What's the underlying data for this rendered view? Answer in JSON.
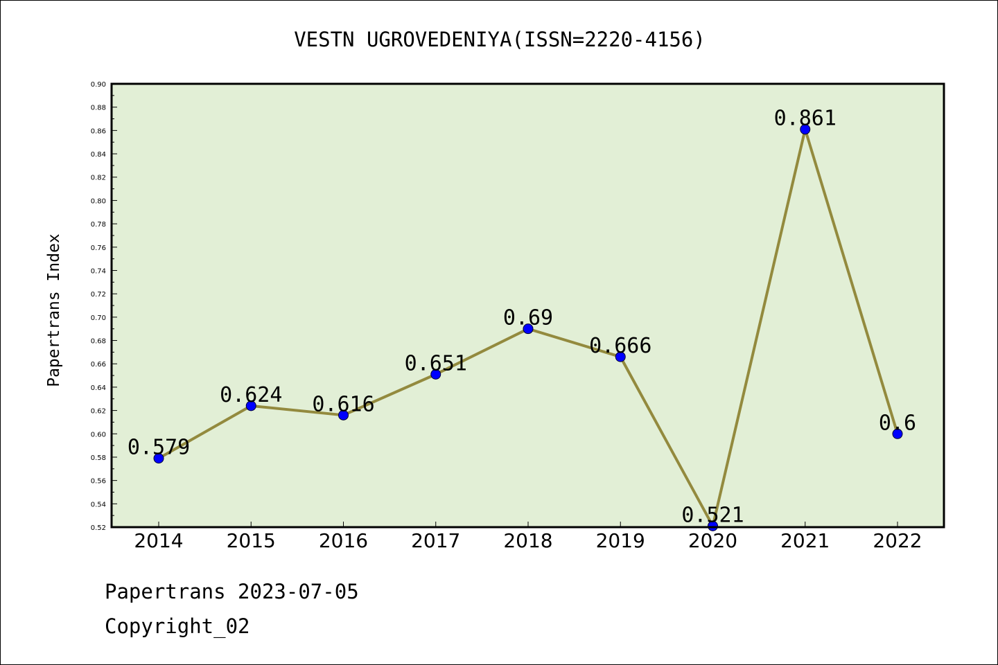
{
  "chart_data": {
    "type": "line",
    "title": "VESTN UGROVEDENIYA(ISSN=2220-4156)",
    "xlabel": "",
    "ylabel": "Papertrans Index",
    "categories": [
      "2014",
      "2015",
      "2016",
      "2017",
      "2018",
      "2019",
      "2020",
      "2021",
      "2022"
    ],
    "values": [
      0.579,
      0.624,
      0.616,
      0.651,
      0.69,
      0.666,
      0.521,
      0.861,
      0.6
    ],
    "data_labels": [
      "0.579",
      "0.624",
      "0.616",
      "0.651",
      "0.69",
      "0.666",
      "0.521",
      "0.861",
      "0.6"
    ],
    "ylim": [
      0.52,
      0.9
    ],
    "y_ticks": [
      "0.52",
      "0.54",
      "0.56",
      "0.58",
      "0.60",
      "0.62",
      "0.64",
      "0.66",
      "0.68",
      "0.70",
      "0.72",
      "0.74",
      "0.76",
      "0.78",
      "0.80",
      "0.82",
      "0.84",
      "0.86",
      "0.88",
      "0.90"
    ],
    "grid": false,
    "colors": {
      "plot_background": "#e2efd6",
      "line": "#938a3e",
      "marker": "#0000ff",
      "axis": "#000000"
    }
  },
  "footer": {
    "line1": "Papertrans 2023-07-05",
    "line2": "Copyright_02"
  }
}
